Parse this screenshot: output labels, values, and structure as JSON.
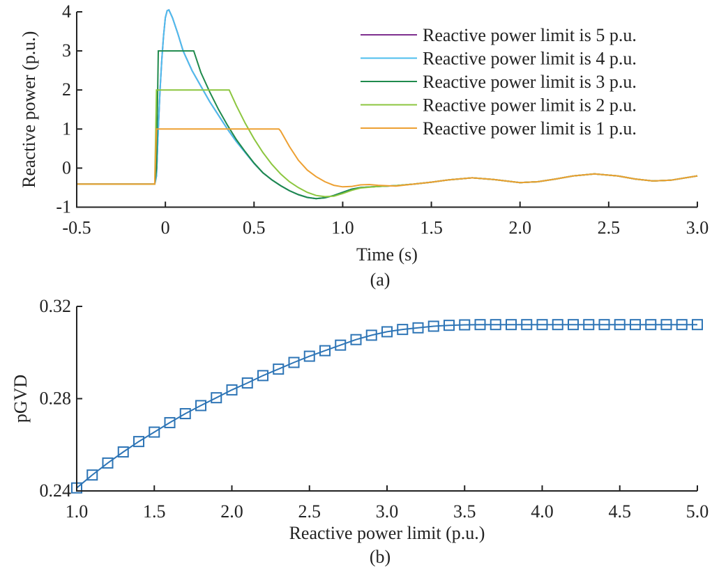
{
  "chart_data": [
    {
      "type": "line",
      "panel_label": "(a)",
      "xlabel": "Time (s)",
      "ylabel": "Reactive power (p.u.)",
      "xlim": [
        -0.5,
        3.0
      ],
      "ylim": [
        -1,
        4
      ],
      "xticks": [
        "-0.5",
        "0",
        "0.5",
        "1.0",
        "1.5",
        "2.0",
        "2.5",
        "3.0"
      ],
      "xtick_values": [
        -0.5,
        0,
        0.5,
        1.0,
        1.5,
        2.0,
        2.5,
        3.0
      ],
      "yticks": [
        "-1",
        "0",
        "1",
        "2",
        "3",
        "4"
      ],
      "ytick_values": [
        -1,
        0,
        1,
        2,
        3,
        4
      ],
      "grid": false,
      "legend_position": "top-right",
      "series": [
        {
          "name": "Reactive power limit is 5 p.u.",
          "color": "#7E2F8E",
          "t": [
            -0.5,
            -0.06,
            -0.05,
            -0.04,
            -0.03,
            -0.02,
            -0.01,
            0,
            0.01,
            0.02,
            0.04,
            0.07,
            0.1,
            0.15,
            0.2,
            0.25,
            0.3,
            0.35,
            0.4,
            0.45,
            0.5,
            0.55,
            0.6,
            0.65,
            0.7,
            0.75,
            0.8,
            0.85,
            0.9,
            0.95,
            1.0,
            1.05,
            1.1,
            1.2,
            1.3,
            1.4,
            1.5,
            1.6,
            1.73,
            1.85,
            2.0,
            2.1,
            2.2,
            2.3,
            2.42,
            2.55,
            2.65,
            2.75,
            2.85,
            3.0
          ],
          "y": [
            -0.41,
            -0.41,
            -0.2,
            1.0,
            2.0,
            2.8,
            3.4,
            3.85,
            4.03,
            4.05,
            3.85,
            3.45,
            3.0,
            2.5,
            2.1,
            1.7,
            1.35,
            1.0,
            0.68,
            0.4,
            0.12,
            -0.12,
            -0.3,
            -0.45,
            -0.58,
            -0.68,
            -0.75,
            -0.78,
            -0.76,
            -0.7,
            -0.62,
            -0.54,
            -0.5,
            -0.47,
            -0.45,
            -0.41,
            -0.36,
            -0.3,
            -0.25,
            -0.29,
            -0.37,
            -0.35,
            -0.28,
            -0.2,
            -0.15,
            -0.2,
            -0.28,
            -0.33,
            -0.31,
            -0.2
          ]
        },
        {
          "name": "Reactive power limit is 4 p.u.",
          "color": "#4DBEEE",
          "t": [
            -0.5,
            -0.06,
            -0.05,
            -0.04,
            -0.03,
            -0.02,
            -0.01,
            0,
            0.01,
            0.02,
            0.04,
            0.07,
            0.1,
            0.15,
            0.2,
            0.25,
            0.3,
            0.35,
            0.4,
            0.45,
            0.5,
            0.55,
            0.6,
            0.65,
            0.7,
            0.75,
            0.8,
            0.85,
            0.9,
            0.95,
            1.0,
            1.05,
            1.1,
            1.2,
            1.3,
            1.4,
            1.5,
            1.6,
            1.73,
            1.85,
            2.0,
            2.1,
            2.2,
            2.3,
            2.42,
            2.55,
            2.65,
            2.75,
            2.85,
            3.0
          ],
          "y": [
            -0.41,
            -0.41,
            -0.2,
            1.0,
            2.0,
            2.8,
            3.4,
            3.85,
            4.03,
            4.05,
            3.85,
            3.45,
            3.0,
            2.5,
            2.1,
            1.7,
            1.35,
            1.0,
            0.68,
            0.4,
            0.12,
            -0.12,
            -0.3,
            -0.45,
            -0.58,
            -0.68,
            -0.75,
            -0.78,
            -0.76,
            -0.7,
            -0.62,
            -0.54,
            -0.5,
            -0.47,
            -0.45,
            -0.41,
            -0.36,
            -0.3,
            -0.25,
            -0.29,
            -0.37,
            -0.35,
            -0.28,
            -0.2,
            -0.15,
            -0.2,
            -0.28,
            -0.33,
            -0.31,
            -0.2
          ]
        },
        {
          "name": "Reactive power limit is 3 p.u.",
          "color": "#1F8A4C",
          "t": [
            -0.5,
            -0.06,
            -0.05,
            -0.045,
            -0.04,
            0.16,
            0.2,
            0.25,
            0.3,
            0.35,
            0.4,
            0.45,
            0.5,
            0.55,
            0.6,
            0.65,
            0.7,
            0.75,
            0.8,
            0.85,
            0.9,
            0.95,
            1.0,
            1.05,
            1.1,
            1.2,
            1.3,
            1.4,
            1.5,
            1.6,
            1.73,
            1.85,
            2.0,
            2.1,
            2.2,
            2.3,
            2.42,
            2.55,
            2.65,
            2.75,
            2.85,
            3.0
          ],
          "y": [
            -0.41,
            -0.41,
            0.0,
            1.5,
            3.0,
            3.0,
            2.45,
            1.95,
            1.5,
            1.1,
            0.73,
            0.42,
            0.13,
            -0.12,
            -0.3,
            -0.45,
            -0.58,
            -0.68,
            -0.75,
            -0.78,
            -0.76,
            -0.7,
            -0.62,
            -0.54,
            -0.5,
            -0.47,
            -0.45,
            -0.41,
            -0.36,
            -0.3,
            -0.25,
            -0.29,
            -0.37,
            -0.35,
            -0.28,
            -0.2,
            -0.15,
            -0.2,
            -0.28,
            -0.33,
            -0.31,
            -0.2
          ]
        },
        {
          "name": "Reactive power limit is 2 p.u.",
          "color": "#8CC63F",
          "t": [
            -0.5,
            -0.06,
            -0.055,
            -0.05,
            0.36,
            0.4,
            0.45,
            0.5,
            0.55,
            0.6,
            0.65,
            0.7,
            0.75,
            0.8,
            0.85,
            0.9,
            0.95,
            1.0,
            1.05,
            1.1,
            1.2,
            1.3,
            1.4,
            1.5,
            1.6,
            1.73,
            1.85,
            2.0,
            2.1,
            2.2,
            2.3,
            2.42,
            2.55,
            2.65,
            2.75,
            2.85,
            3.0
          ],
          "y": [
            -0.41,
            -0.41,
            0.8,
            2.0,
            2.0,
            1.6,
            1.15,
            0.75,
            0.4,
            0.1,
            -0.15,
            -0.35,
            -0.5,
            -0.62,
            -0.7,
            -0.73,
            -0.72,
            -0.65,
            -0.57,
            -0.51,
            -0.47,
            -0.45,
            -0.41,
            -0.36,
            -0.3,
            -0.25,
            -0.29,
            -0.37,
            -0.35,
            -0.28,
            -0.2,
            -0.15,
            -0.2,
            -0.28,
            -0.33,
            -0.31,
            -0.2
          ]
        },
        {
          "name": "Reactive power limit is 1 p.u.",
          "color": "#EDA032",
          "t": [
            -0.5,
            -0.06,
            -0.05,
            0.64,
            0.65,
            0.7,
            0.75,
            0.8,
            0.85,
            0.9,
            0.95,
            1.0,
            1.05,
            1.1,
            1.15,
            1.2,
            1.3,
            1.4,
            1.5,
            1.6,
            1.73,
            1.85,
            2.0,
            2.1,
            2.2,
            2.3,
            2.42,
            2.55,
            2.65,
            2.75,
            2.85,
            3.0
          ],
          "y": [
            -0.41,
            -0.41,
            1.0,
            1.0,
            0.95,
            0.55,
            0.2,
            -0.05,
            -0.22,
            -0.35,
            -0.44,
            -0.48,
            -0.47,
            -0.43,
            -0.42,
            -0.44,
            -0.46,
            -0.41,
            -0.36,
            -0.3,
            -0.25,
            -0.29,
            -0.37,
            -0.35,
            -0.28,
            -0.2,
            -0.15,
            -0.2,
            -0.28,
            -0.33,
            -0.31,
            -0.2
          ]
        }
      ]
    },
    {
      "type": "line",
      "panel_label": "(b)",
      "xlabel": "Reactive power limit (p.u.)",
      "ylabel": "pGVD",
      "xlim": [
        1.0,
        5.0
      ],
      "ylim": [
        0.24,
        0.32
      ],
      "xticks": [
        "1.0",
        "1.5",
        "2.0",
        "2.5",
        "3.0",
        "3.5",
        "4.0",
        "4.5",
        "5.0"
      ],
      "xtick_values": [
        1.0,
        1.5,
        2.0,
        2.5,
        3.0,
        3.5,
        4.0,
        4.5,
        5.0
      ],
      "yticks": [
        "0.24",
        "0.28",
        "0.32"
      ],
      "ytick_values": [
        0.24,
        0.28,
        0.32
      ],
      "grid": false,
      "marker": "square",
      "series": [
        {
          "color": "#2E75B6",
          "x": [
            1.0,
            1.1,
            1.2,
            1.3,
            1.4,
            1.5,
            1.6,
            1.7,
            1.8,
            1.9,
            2.0,
            2.1,
            2.2,
            2.3,
            2.4,
            2.5,
            2.6,
            2.7,
            2.8,
            2.9,
            3.0,
            3.1,
            3.2,
            3.3,
            3.4,
            3.5,
            3.6,
            3.7,
            3.8,
            3.9,
            4.0,
            4.1,
            4.2,
            4.3,
            4.4,
            4.5,
            4.6,
            4.7,
            4.8,
            4.9,
            5.0
          ],
          "y": [
            0.2413,
            0.2469,
            0.2521,
            0.2569,
            0.2614,
            0.2655,
            0.2696,
            0.2735,
            0.277,
            0.2804,
            0.2838,
            0.2868,
            0.29,
            0.2928,
            0.2957,
            0.2984,
            0.3008,
            0.3032,
            0.3056,
            0.3075,
            0.309,
            0.31,
            0.3107,
            0.3114,
            0.3118,
            0.312,
            0.3121,
            0.3121,
            0.3121,
            0.3121,
            0.3121,
            0.3121,
            0.3121,
            0.3121,
            0.3121,
            0.3121,
            0.3121,
            0.3121,
            0.3121,
            0.3121,
            0.3121
          ]
        }
      ]
    }
  ]
}
